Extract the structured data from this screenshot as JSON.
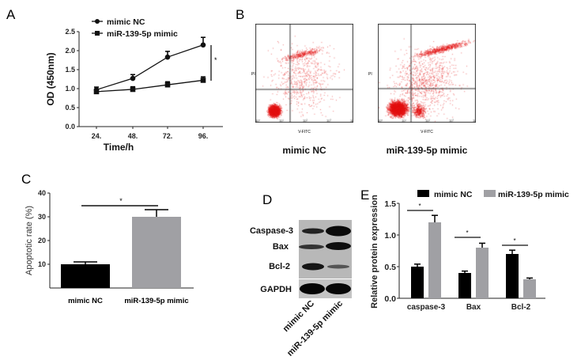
{
  "panels": {
    "a": "A",
    "b": "B",
    "c": "C",
    "d": "D",
    "e": "E"
  },
  "chart_data": [
    {
      "panel": "A",
      "type": "line",
      "xlabel": "Time/h",
      "ylabel": "OD (450nm)",
      "categories": [
        "24.",
        "48.",
        "72.",
        "96."
      ],
      "ylim": [
        0,
        2.5
      ],
      "yticks": [
        "0.0",
        "0.5",
        "1.0",
        "1.5",
        "2.0",
        "2.5"
      ],
      "series": [
        {
          "name": "mimic NC",
          "marker": "circle",
          "values": [
            0.97,
            1.27,
            1.83,
            2.15
          ],
          "errors": [
            0.07,
            0.1,
            0.15,
            0.2
          ]
        },
        {
          "name": "miR-139-5p mimic",
          "marker": "square",
          "values": [
            0.92,
            0.98,
            1.1,
            1.22
          ],
          "errors": [
            0.05,
            0.07,
            0.08,
            0.09
          ]
        }
      ],
      "annotation": "*"
    },
    {
      "panel": "B",
      "type": "scatter",
      "xlabel": "V-FITC",
      "ylabel": "PI",
      "ticks": [
        "10⁰",
        "10¹",
        "10²",
        "10³",
        "10⁴"
      ],
      "plots": [
        "mimic NC",
        "miR-139-5p mimic"
      ]
    },
    {
      "panel": "C",
      "type": "bar",
      "ylabel": "Apoptotic rate (%)",
      "categories": [
        "mimic NC",
        "miR-139-5p mimic"
      ],
      "values": [
        10,
        30
      ],
      "errors": [
        1,
        3
      ],
      "colors": [
        "#000000",
        "#a0a0a4"
      ],
      "ylim": [
        0,
        40
      ],
      "yticks": [
        "10",
        "20",
        "30",
        "40"
      ],
      "annotation": "*"
    },
    {
      "panel": "E",
      "type": "bar",
      "ylabel": "Relative protein expression",
      "categories": [
        "caspase-3",
        "Bax",
        "Bcl-2"
      ],
      "ylim": [
        0,
        1.5
      ],
      "yticks": [
        "0.0",
        "0.5",
        "1.0",
        "1.5"
      ],
      "series": [
        {
          "name": "mimic NC",
          "color": "#000000",
          "values": [
            0.5,
            0.4,
            0.7
          ],
          "errors": [
            0.04,
            0.03,
            0.06
          ]
        },
        {
          "name": "miR-139-5p mimic",
          "color": "#a0a0a4",
          "values": [
            1.2,
            0.8,
            0.3
          ],
          "errors": [
            0.11,
            0.07,
            0.02
          ]
        }
      ],
      "annotation": "*"
    }
  ],
  "blot": {
    "rows": [
      "Caspase-3",
      "Bax",
      "Bcl-2",
      "GAPDH"
    ],
    "lanes": [
      "mimic NC",
      "miR-139-5p mimic"
    ]
  }
}
